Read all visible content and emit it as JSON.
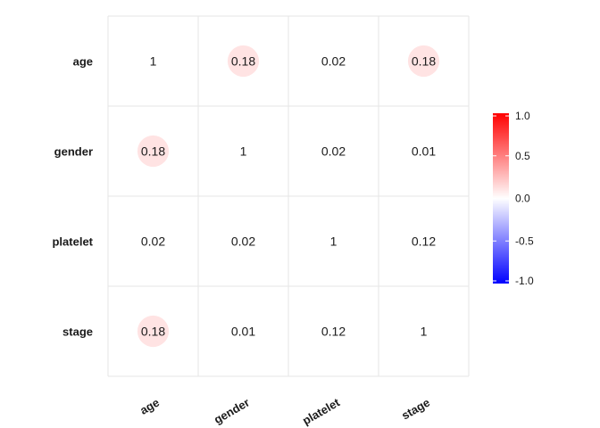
{
  "chart_data": {
    "type": "heatmap",
    "title": "",
    "variables": [
      "age",
      "gender",
      "platelet",
      "stage"
    ],
    "matrix": [
      [
        1,
        0.18,
        0.02,
        0.18
      ],
      [
        0.18,
        1,
        0.02,
        0.01
      ],
      [
        0.02,
        0.02,
        1,
        0.12
      ],
      [
        0.18,
        0.01,
        0.12,
        1
      ]
    ],
    "cell_labels": [
      [
        "1",
        "0.18",
        "0.02",
        "0.18"
      ],
      [
        "0.18",
        "1",
        "0.02",
        "0.01"
      ],
      [
        "0.02",
        "0.02",
        "1",
        "0.12"
      ],
      [
        "0.18",
        "0.01",
        "0.12",
        "1"
      ]
    ],
    "show_circles": [
      [
        false,
        true,
        false,
        true
      ],
      [
        true,
        false,
        false,
        false
      ],
      [
        false,
        false,
        false,
        false
      ],
      [
        true,
        false,
        false,
        false
      ]
    ],
    "colorbar": {
      "range": [
        -1.0,
        1.0
      ],
      "tick_values": [
        1.0,
        0.5,
        0.0,
        -0.5,
        -1.0
      ],
      "tick_labels": [
        "1.0",
        "0.5",
        "0.0",
        "-0.5",
        "-1.0"
      ],
      "colors": {
        "low": "#0000ff",
        "mid": "#ffffff",
        "high": "#ff0000"
      }
    },
    "grid": true,
    "legend_position": "right",
    "colors": {
      "grid": "#e5e5e5",
      "text": "#1a1a1a"
    }
  }
}
